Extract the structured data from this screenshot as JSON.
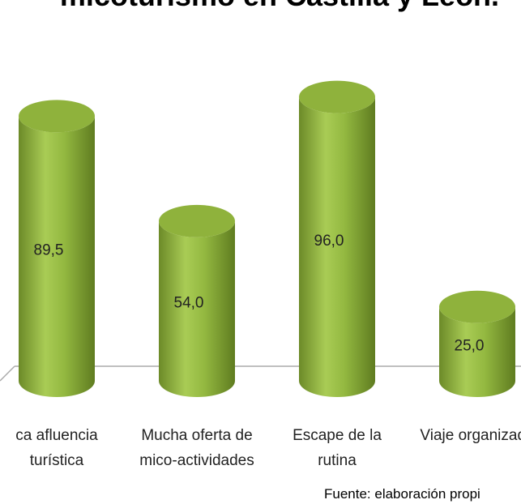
{
  "chart_data": {
    "type": "bar",
    "title": "micoturismo en Castilla y León.",
    "categories": [
      "ca afluencia\nturística",
      "Mucha oferta de\nmico-actividades",
      "Escape de la\nrutina",
      "Viaje organizado"
    ],
    "values": [
      89.5,
      54.0,
      96.0,
      25.0
    ],
    "value_labels": [
      "89,5",
      "54,0",
      "96,0",
      "25,0"
    ],
    "color": "#8fb23c",
    "source": "Fuente: elaboración propi"
  }
}
